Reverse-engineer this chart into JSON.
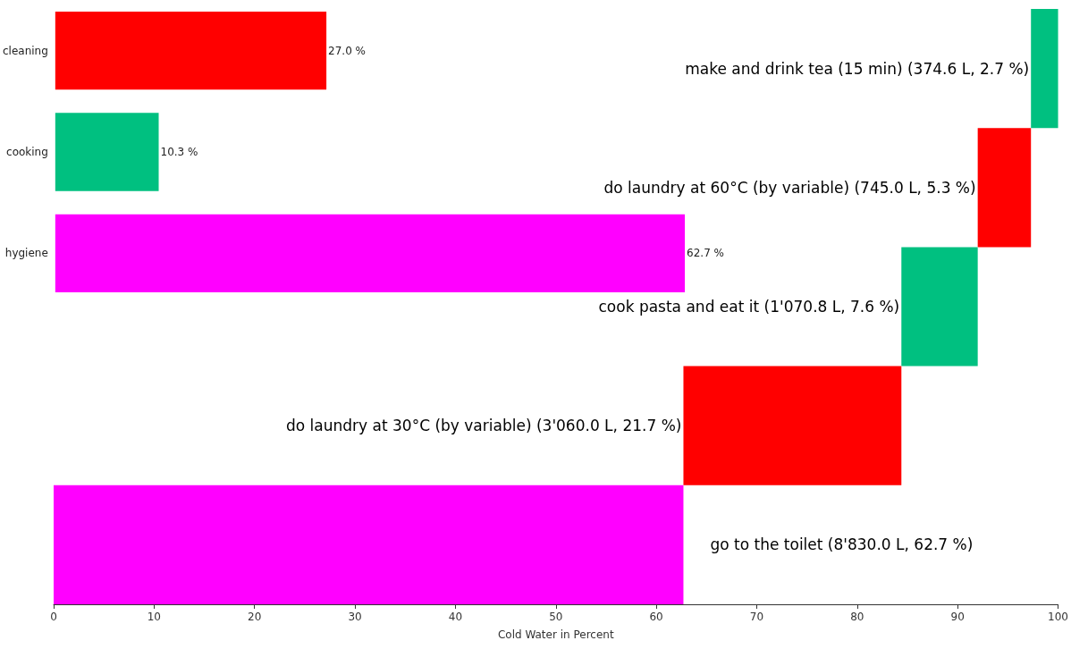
{
  "chart_data": [
    {
      "type": "bar",
      "orientation": "horizontal",
      "categories": [
        "cleaning",
        "cooking",
        "hygiene"
      ],
      "values": [
        27.0,
        10.3,
        62.7
      ],
      "colors": [
        "#ff0000",
        "#00c080",
        "#ff00ff"
      ],
      "value_labels": [
        "27.0 %",
        "10.3 %",
        "62.7 %"
      ],
      "xlim": [
        0,
        100
      ],
      "tick_labels": "y",
      "grid": false
    },
    {
      "type": "bar",
      "orientation": "horizontal",
      "categories": [
        null,
        null,
        null,
        null,
        null
      ],
      "values": [
        2.7,
        5.3,
        7.6,
        21.7,
        62.7
      ],
      "base": [
        97.3,
        92.0,
        84.4,
        62.7,
        0
      ],
      "colors": [
        "#00c080",
        "#ff0000",
        "#00c080",
        "#ff0000",
        "#ff00ff"
      ],
      "value_labels": [
        "make and drink tea (15 min) (374.6 L, 2.7 %)",
        "do laundry at 60°C (by variable) (745.0 L, 5.3 %)",
        "cook pasta and eat it (1'070.8 L, 7.6 %)",
        "do laundry at 30°C (by variable) (3'060.0 L, 21.7 %)",
        "go to the toilet (8'830.0 L, 62.7 %)"
      ],
      "xlim": [
        0,
        100
      ],
      "xticks": [
        0,
        10,
        20,
        30,
        40,
        50,
        60,
        70,
        80,
        90,
        100
      ],
      "xlabel": "Cold Water in Percent",
      "tick_labels": "x",
      "grid": false
    }
  ]
}
